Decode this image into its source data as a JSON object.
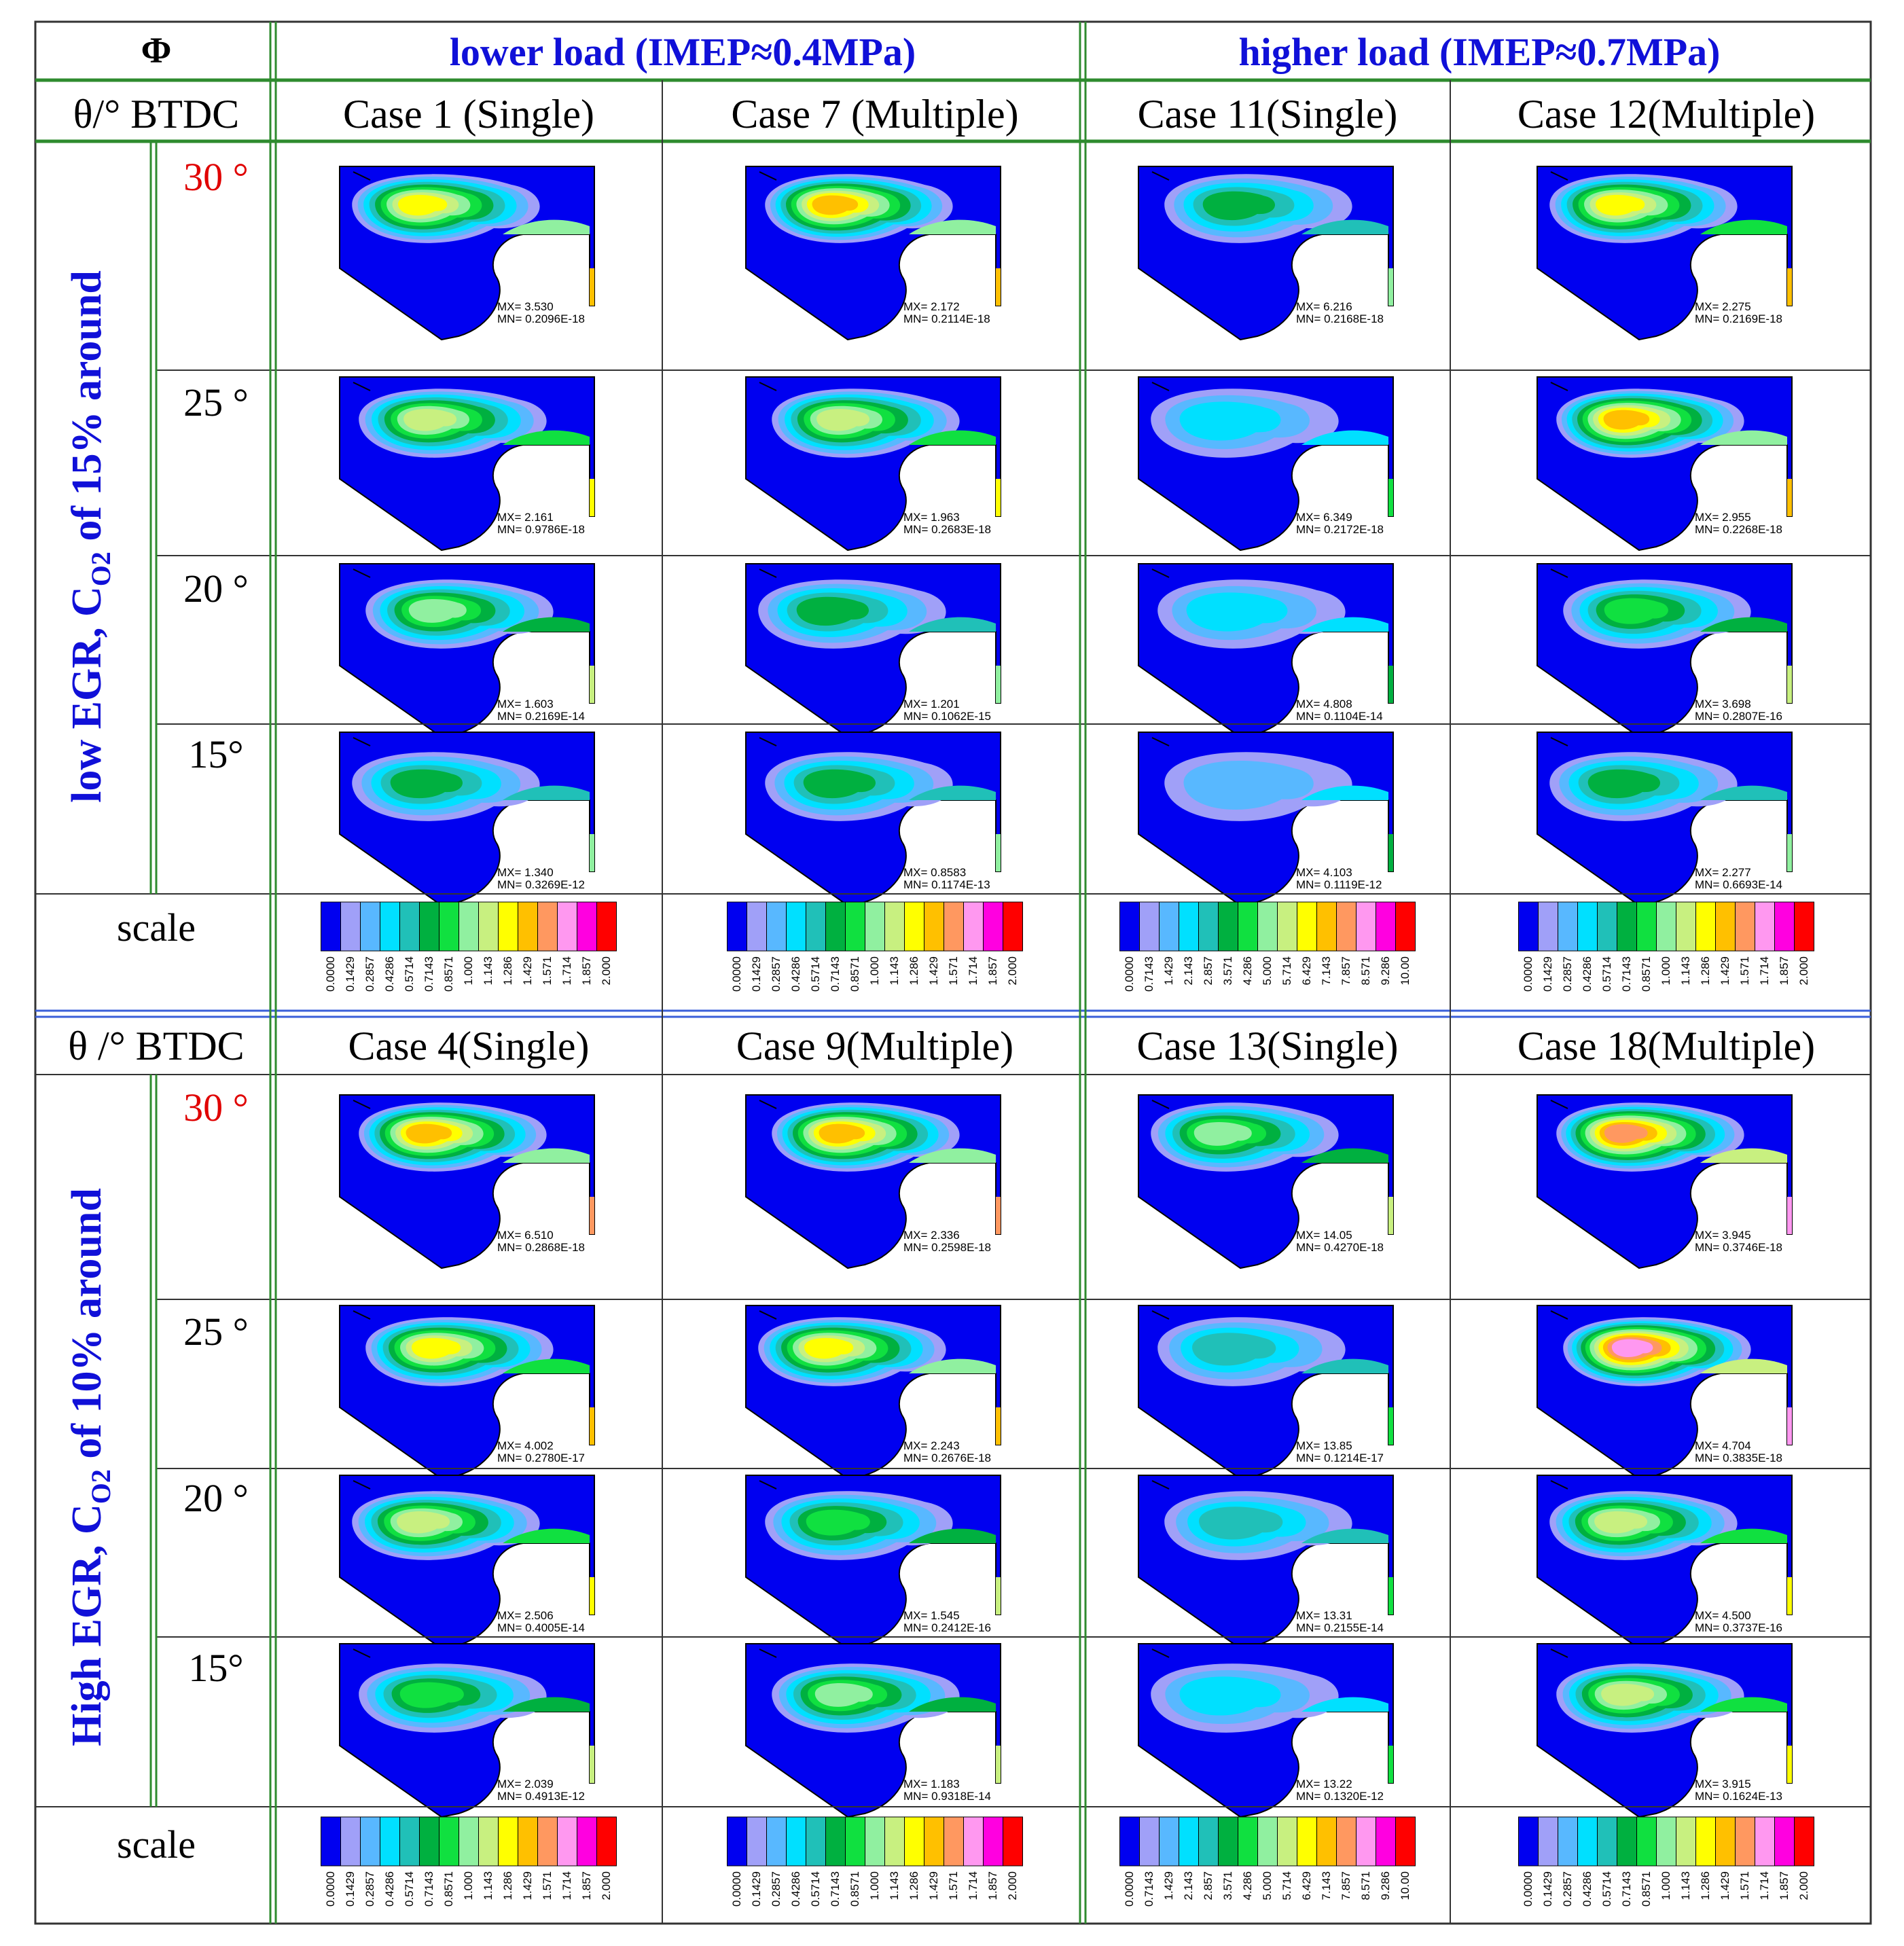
{
  "header": {
    "phi_label": "Φ",
    "lower_load": "lower load (IMEP≈0.4MPa)",
    "higher_load": "higher load (IMEP≈0.7MPa)"
  },
  "colors": {
    "header_blue": "#1010d8",
    "accent_red": "#e00000",
    "grid_green": "#2e8b2e",
    "divider_blue": "#3a5fd8",
    "cell_border": "#333333"
  },
  "palette": [
    "#0000f0",
    "#a0a0f8",
    "#58b8ff",
    "#00e0ff",
    "#20c0b8",
    "#00b040",
    "#10e040",
    "#90f0a0",
    "#c8f080",
    "#ffff00",
    "#ffc000",
    "#ff9860",
    "#ff98f0",
    "#ff00e0",
    "#ff0000"
  ],
  "sections": [
    {
      "theta_header": "θ/° BTDC",
      "row_label_prefix": "low EGR, C",
      "row_label_sub": "O2",
      "row_label_suffix": " of 15% around",
      "cases": [
        "Case 1 (Single)",
        "Case 7 (Multiple)",
        "Case 11(Single)",
        "Case 12(Multiple)"
      ],
      "angles": [
        {
          "label": "30 °",
          "highlight": true
        },
        {
          "label": "25 °",
          "highlight": false
        },
        {
          "label": "20 °",
          "highlight": false
        },
        {
          "label": "15°",
          "highlight": false
        }
      ],
      "plots": [
        [
          {
            "mx": "MX= 3.530",
            "mn": "MN= 0.2096E-18",
            "intensity": 0.75
          },
          {
            "mx": "MX= 2.172",
            "mn": "MN= 0.2114E-18",
            "intensity": 0.8
          },
          {
            "mx": "MX= 6.216",
            "mn": "MN= 0.2168E-18",
            "intensity": 0.35
          },
          {
            "mx": "MX= 2.275",
            "mn": "MN= 0.2169E-18",
            "intensity": 0.7
          }
        ],
        [
          {
            "mx": "MX= 2.161",
            "mn": "MN= 0.9786E-18",
            "intensity": 0.6
          },
          {
            "mx": "MX= 1.963",
            "mn": "MN= 0.2683E-18",
            "intensity": 0.6
          },
          {
            "mx": "MX= 6.349",
            "mn": "MN= 0.2172E-18",
            "intensity": 0.2
          },
          {
            "mx": "MX= 2.955",
            "mn": "MN= 0.2268E-18",
            "intensity": 0.8
          }
        ],
        [
          {
            "mx": "MX= 1.603",
            "mn": "MN= 0.2169E-14",
            "intensity": 0.5
          },
          {
            "mx": "MX= 1.201",
            "mn": "MN= 0.1062E-15",
            "intensity": 0.4
          },
          {
            "mx": "MX= 4.808",
            "mn": "MN= 0.1104E-14",
            "intensity": 0.15
          },
          {
            "mx": "MX= 3.698",
            "mn": "MN= 0.2807E-16",
            "intensity": 0.45
          }
        ],
        [
          {
            "mx": "MX= 1.340",
            "mn": "MN= 0.3269E-12",
            "intensity": 0.4
          },
          {
            "mx": "MX= 0.8583",
            "mn": "MN= 0.1174E-13",
            "intensity": 0.35
          },
          {
            "mx": "MX= 4.103",
            "mn": "MN= 0.1119E-12",
            "intensity": 0.12
          },
          {
            "mx": "MX= 2.277",
            "mn": "MN= 0.6693E-14",
            "intensity": 0.4
          }
        ]
      ],
      "scale_label": "scale",
      "scales": [
        [
          "0.0000",
          "0.1429",
          "0.2857",
          "0.4286",
          "0.5714",
          "0.7143",
          "0.8571",
          "1.000",
          "1.143",
          "1.286",
          "1.429",
          "1.571",
          "1.714",
          "1.857",
          "2.000"
        ],
        [
          "0.0000",
          "0.1429",
          "0.2857",
          "0.4286",
          "0.5714",
          "0.7143",
          "0.8571",
          "1.000",
          "1.143",
          "1.286",
          "1.429",
          "1.571",
          "1.714",
          "1.857",
          "2.000"
        ],
        [
          "0.0000",
          "0.7143",
          "1.429",
          "2.143",
          "2.857",
          "3.571",
          "4.286",
          "5.000",
          "5.714",
          "6.429",
          "7.143",
          "7.857",
          "8.571",
          "9.286",
          "10.00"
        ],
        [
          "0.0000",
          "0.1429",
          "0.2857",
          "0.4286",
          "0.5714",
          "0.7143",
          "0.8571",
          "1.000",
          "1.143",
          "1.286",
          "1.429",
          "1.571",
          "1.714",
          "1.857",
          "2.000"
        ]
      ]
    },
    {
      "theta_header": "θ /° BTDC",
      "row_label_prefix": "High EGR, C",
      "row_label_sub": "O2",
      "row_label_suffix": " of 10% around",
      "cases": [
        "Case 4(Single)",
        "Case 9(Multiple)",
        "Case 13(Single)",
        "Case 18(Multiple)"
      ],
      "angles": [
        {
          "label": "30 °",
          "highlight": true
        },
        {
          "label": "25 °",
          "highlight": false
        },
        {
          "label": "20 °",
          "highlight": false
        },
        {
          "label": "15°",
          "highlight": false
        }
      ],
      "plots": [
        [
          {
            "mx": "MX= 6.510",
            "mn": "MN= 0.2868E-18",
            "intensity": 0.85
          },
          {
            "mx": "MX= 2.336",
            "mn": "MN= 0.2598E-18",
            "intensity": 0.85
          },
          {
            "mx": "MX= 14.05",
            "mn": "MN= 0.4270E-18",
            "intensity": 0.5
          },
          {
            "mx": "MX= 3.945",
            "mn": "MN= 0.3746E-18",
            "intensity": 0.95
          }
        ],
        [
          {
            "mx": "MX= 4.002",
            "mn": "MN= 0.2780E-17",
            "intensity": 0.7
          },
          {
            "mx": "MX= 2.243",
            "mn": "MN= 0.2676E-18",
            "intensity": 0.75
          },
          {
            "mx": "MX= 13.85",
            "mn": "MN= 0.1214E-17",
            "intensity": 0.3
          },
          {
            "mx": "MX= 4.704",
            "mn": "MN= 0.3835E-18",
            "intensity": 1.0
          }
        ],
        [
          {
            "mx": "MX= 2.506",
            "mn": "MN= 0.4005E-14",
            "intensity": 0.6
          },
          {
            "mx": "MX= 1.545",
            "mn": "MN= 0.2412E-16",
            "intensity": 0.45
          },
          {
            "mx": "MX= 13.31",
            "mn": "MN= 0.2155E-14",
            "intensity": 0.25
          },
          {
            "mx": "MX= 4.500",
            "mn": "MN= 0.3737E-16",
            "intensity": 0.65
          }
        ],
        [
          {
            "mx": "MX= 2.039",
            "mn": "MN= 0.4913E-12",
            "intensity": 0.45
          },
          {
            "mx": "MX= 1.183",
            "mn": "MN= 0.9318E-14",
            "intensity": 0.5
          },
          {
            "mx": "MX= 13.22",
            "mn": "MN= 0.1320E-12",
            "intensity": 0.2
          },
          {
            "mx": "MX= 3.915",
            "mn": "MN= 0.1624E-13",
            "intensity": 0.65
          }
        ]
      ],
      "scale_label": "scale",
      "scales": [
        [
          "0.0000",
          "0.1429",
          "0.2857",
          "0.4286",
          "0.5714",
          "0.7143",
          "0.8571",
          "1.000",
          "1.143",
          "1.286",
          "1.429",
          "1.571",
          "1.714",
          "1.857",
          "2.000"
        ],
        [
          "0.0000",
          "0.1429",
          "0.2857",
          "0.4286",
          "0.5714",
          "0.7143",
          "0.8571",
          "1.000",
          "1.143",
          "1.286",
          "1.429",
          "1.571",
          "1.714",
          "1.857",
          "2.000"
        ],
        [
          "0.0000",
          "0.7143",
          "1.429",
          "2.143",
          "2.857",
          "3.571",
          "4.286",
          "5.000",
          "5.714",
          "6.429",
          "7.143",
          "7.857",
          "8.571",
          "9.286",
          "10.00"
        ],
        [
          "0.0000",
          "0.1429",
          "0.2857",
          "0.4286",
          "0.5714",
          "0.7143",
          "0.8571",
          "1.000",
          "1.143",
          "1.286",
          "1.429",
          "1.571",
          "1.714",
          "1.857",
          "2.000"
        ]
      ]
    }
  ]
}
